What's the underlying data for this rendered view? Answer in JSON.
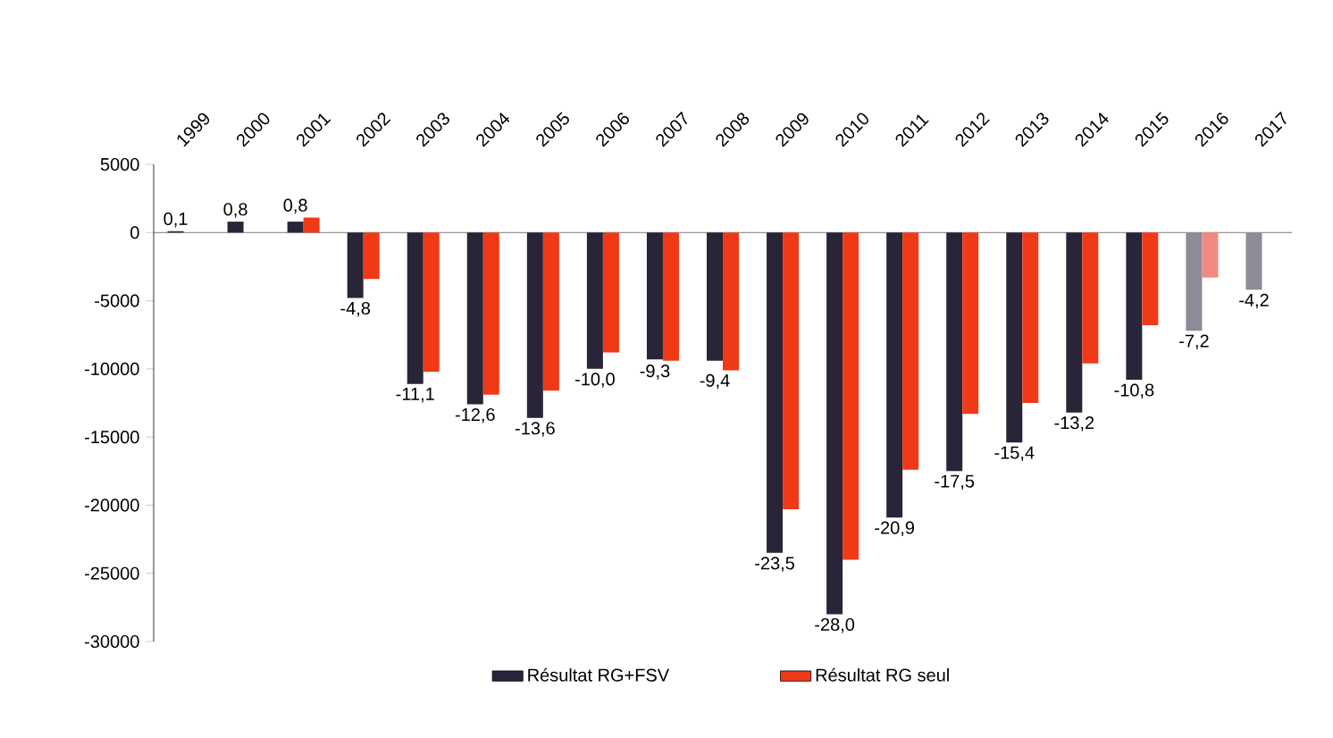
{
  "chart_data": {
    "type": "bar",
    "categories": [
      "1999",
      "2000",
      "2001",
      "2002",
      "2003",
      "2004",
      "2005",
      "2006",
      "2007",
      "2008",
      "2009",
      "2010",
      "2011",
      "2012",
      "2013",
      "2014",
      "2015",
      "2016",
      "2017"
    ],
    "series": [
      {
        "name": "Résultat RG+FSV",
        "color": "#2a2438",
        "colors": [
          "#2a2438",
          "#2a2438",
          "#2a2438",
          "#2a2438",
          "#2a2438",
          "#2a2438",
          "#2a2438",
          "#2a2438",
          "#2a2438",
          "#2a2438",
          "#2a2438",
          "#2a2438",
          "#2a2438",
          "#2a2438",
          "#2a2438",
          "#2a2438",
          "#2a2438",
          "#8e8a98",
          "#8e8a98"
        ],
        "values": [
          100,
          800,
          800,
          -4800,
          -11100,
          -12600,
          -13600,
          -10000,
          -9300,
          -9400,
          -23500,
          -28000,
          -20900,
          -17500,
          -15400,
          -13200,
          -10800,
          -7200,
          -4200
        ]
      },
      {
        "name": "Résultat RG seul",
        "color": "#f03a17",
        "colors": [
          "#f03a17",
          "#f03a17",
          "#f03a17",
          "#f03a17",
          "#f03a17",
          "#f03a17",
          "#f03a17",
          "#f03a17",
          "#f03a17",
          "#f03a17",
          "#f03a17",
          "#f03a17",
          "#f03a17",
          "#f03a17",
          "#f03a17",
          "#f03a17",
          "#f03a17",
          "#f08a80",
          "#f08a80"
        ],
        "values": [
          null,
          null,
          1100,
          -3400,
          -10200,
          -11900,
          -11600,
          -8800,
          -9400,
          -10100,
          -20300,
          -24000,
          -17400,
          -13300,
          -12500,
          -9600,
          -6800,
          -3300,
          null
        ]
      }
    ],
    "annotations": [
      "0,1",
      "0,8",
      "0,8",
      "-4,8",
      "-11,1",
      "-12,6",
      "-13,6",
      "-10,0",
      "-9,3",
      "-9,4",
      "-23,5",
      "-28,0",
      "-20,9",
      "-17,5",
      "-15,4",
      "-13,2",
      "-10,8",
      "-7,2",
      "-4,2"
    ],
    "ylim": [
      -30000,
      5000
    ],
    "yticks": [
      -30000,
      -25000,
      -20000,
      -15000,
      -10000,
      -5000,
      0,
      5000
    ],
    "legend": "bottom"
  }
}
